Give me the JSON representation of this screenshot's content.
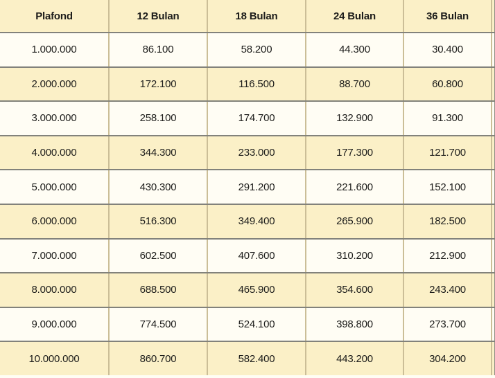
{
  "chart_data": {
    "type": "table",
    "columns": [
      "Plafond",
      "12 Bulan",
      "18 Bulan",
      "24 Bulan",
      "36 Bulan"
    ],
    "rows": [
      [
        "1.000.000",
        "86.100",
        "58.200",
        "44.300",
        "30.400"
      ],
      [
        "2.000.000",
        "172.100",
        "116.500",
        "88.700",
        "60.800"
      ],
      [
        "3.000.000",
        "258.100",
        "174.700",
        "132.900",
        "91.300"
      ],
      [
        "4.000.000",
        "344.300",
        "233.000",
        "177.300",
        "121.700"
      ],
      [
        "5.000.000",
        "430.300",
        "291.200",
        "221.600",
        "152.100"
      ],
      [
        "6.000.000",
        "516.300",
        "349.400",
        "265.900",
        "182.500"
      ],
      [
        "7.000.000",
        "602.500",
        "407.600",
        "310.200",
        "212.900"
      ],
      [
        "8.000.000",
        "688.500",
        "465.900",
        "354.600",
        "243.400"
      ],
      [
        "9.000.000",
        "774.500",
        "524.100",
        "398.800",
        "273.700"
      ],
      [
        "10.000.000",
        "860.700",
        "582.400",
        "443.200",
        "304.200"
      ]
    ],
    "rows_numeric": [
      [
        1000000,
        86100,
        58200,
        44300,
        30400
      ],
      [
        2000000,
        172100,
        116500,
        88700,
        60800
      ],
      [
        3000000,
        258100,
        174700,
        132900,
        91300
      ],
      [
        4000000,
        344300,
        233000,
        177300,
        121700
      ],
      [
        5000000,
        430300,
        291200,
        221600,
        152100
      ],
      [
        6000000,
        516300,
        349400,
        265900,
        182500
      ],
      [
        7000000,
        602500,
        407600,
        310200,
        212900
      ],
      [
        8000000,
        688500,
        465900,
        354600,
        243400
      ],
      [
        9000000,
        774500,
        524100,
        398800,
        273700
      ],
      [
        10000000,
        860700,
        582400,
        443200,
        304200
      ]
    ],
    "layout": {
      "grid": "on",
      "header_position": "top",
      "cell_alignment": "center",
      "row_striping": "alternating"
    }
  },
  "colors": {
    "header_bg": "#FBF0C7",
    "row_cream_bg": "#FBF0C7",
    "row_white_bg": "#FFFDF4",
    "horizontal_border": "#82827B",
    "vertical_border": "#CBBE97",
    "right_edge_border": "#8B8B83",
    "text": "#1D1D1B"
  }
}
